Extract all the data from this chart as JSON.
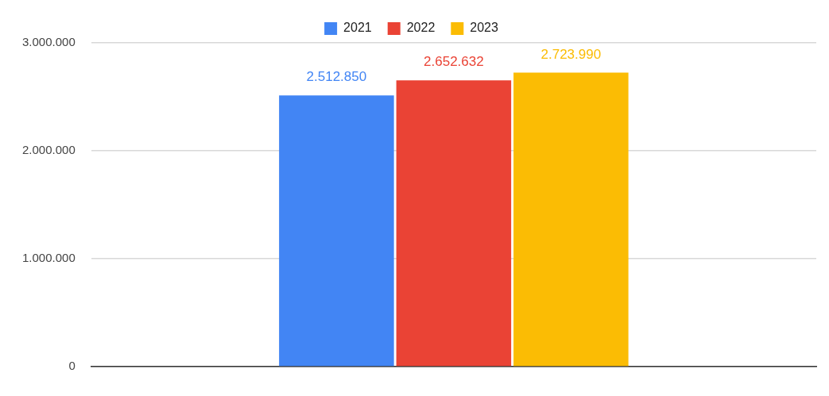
{
  "chart_data": {
    "type": "bar",
    "categories": [
      null
    ],
    "series": [
      {
        "name": "2021",
        "color": "#4285f4",
        "values": [
          2512850
        ],
        "value_labels": [
          "2.512.850"
        ]
      },
      {
        "name": "2022",
        "color": "#ea4335",
        "values": [
          2652632
        ],
        "value_labels": [
          "2.652.632"
        ]
      },
      {
        "name": "2023",
        "color": "#fbbc04",
        "values": [
          2723990
        ],
        "value_labels": [
          "2.723.990"
        ]
      }
    ],
    "ylim": [
      0,
      3000000
    ],
    "yticks": [
      {
        "value": 0,
        "label": "0"
      },
      {
        "value": 1000000,
        "label": "1.000.000"
      },
      {
        "value": 2000000,
        "label": "2.000.000"
      },
      {
        "value": 3000000,
        "label": "3.000.000"
      }
    ],
    "grid": "y",
    "legend": "top"
  }
}
